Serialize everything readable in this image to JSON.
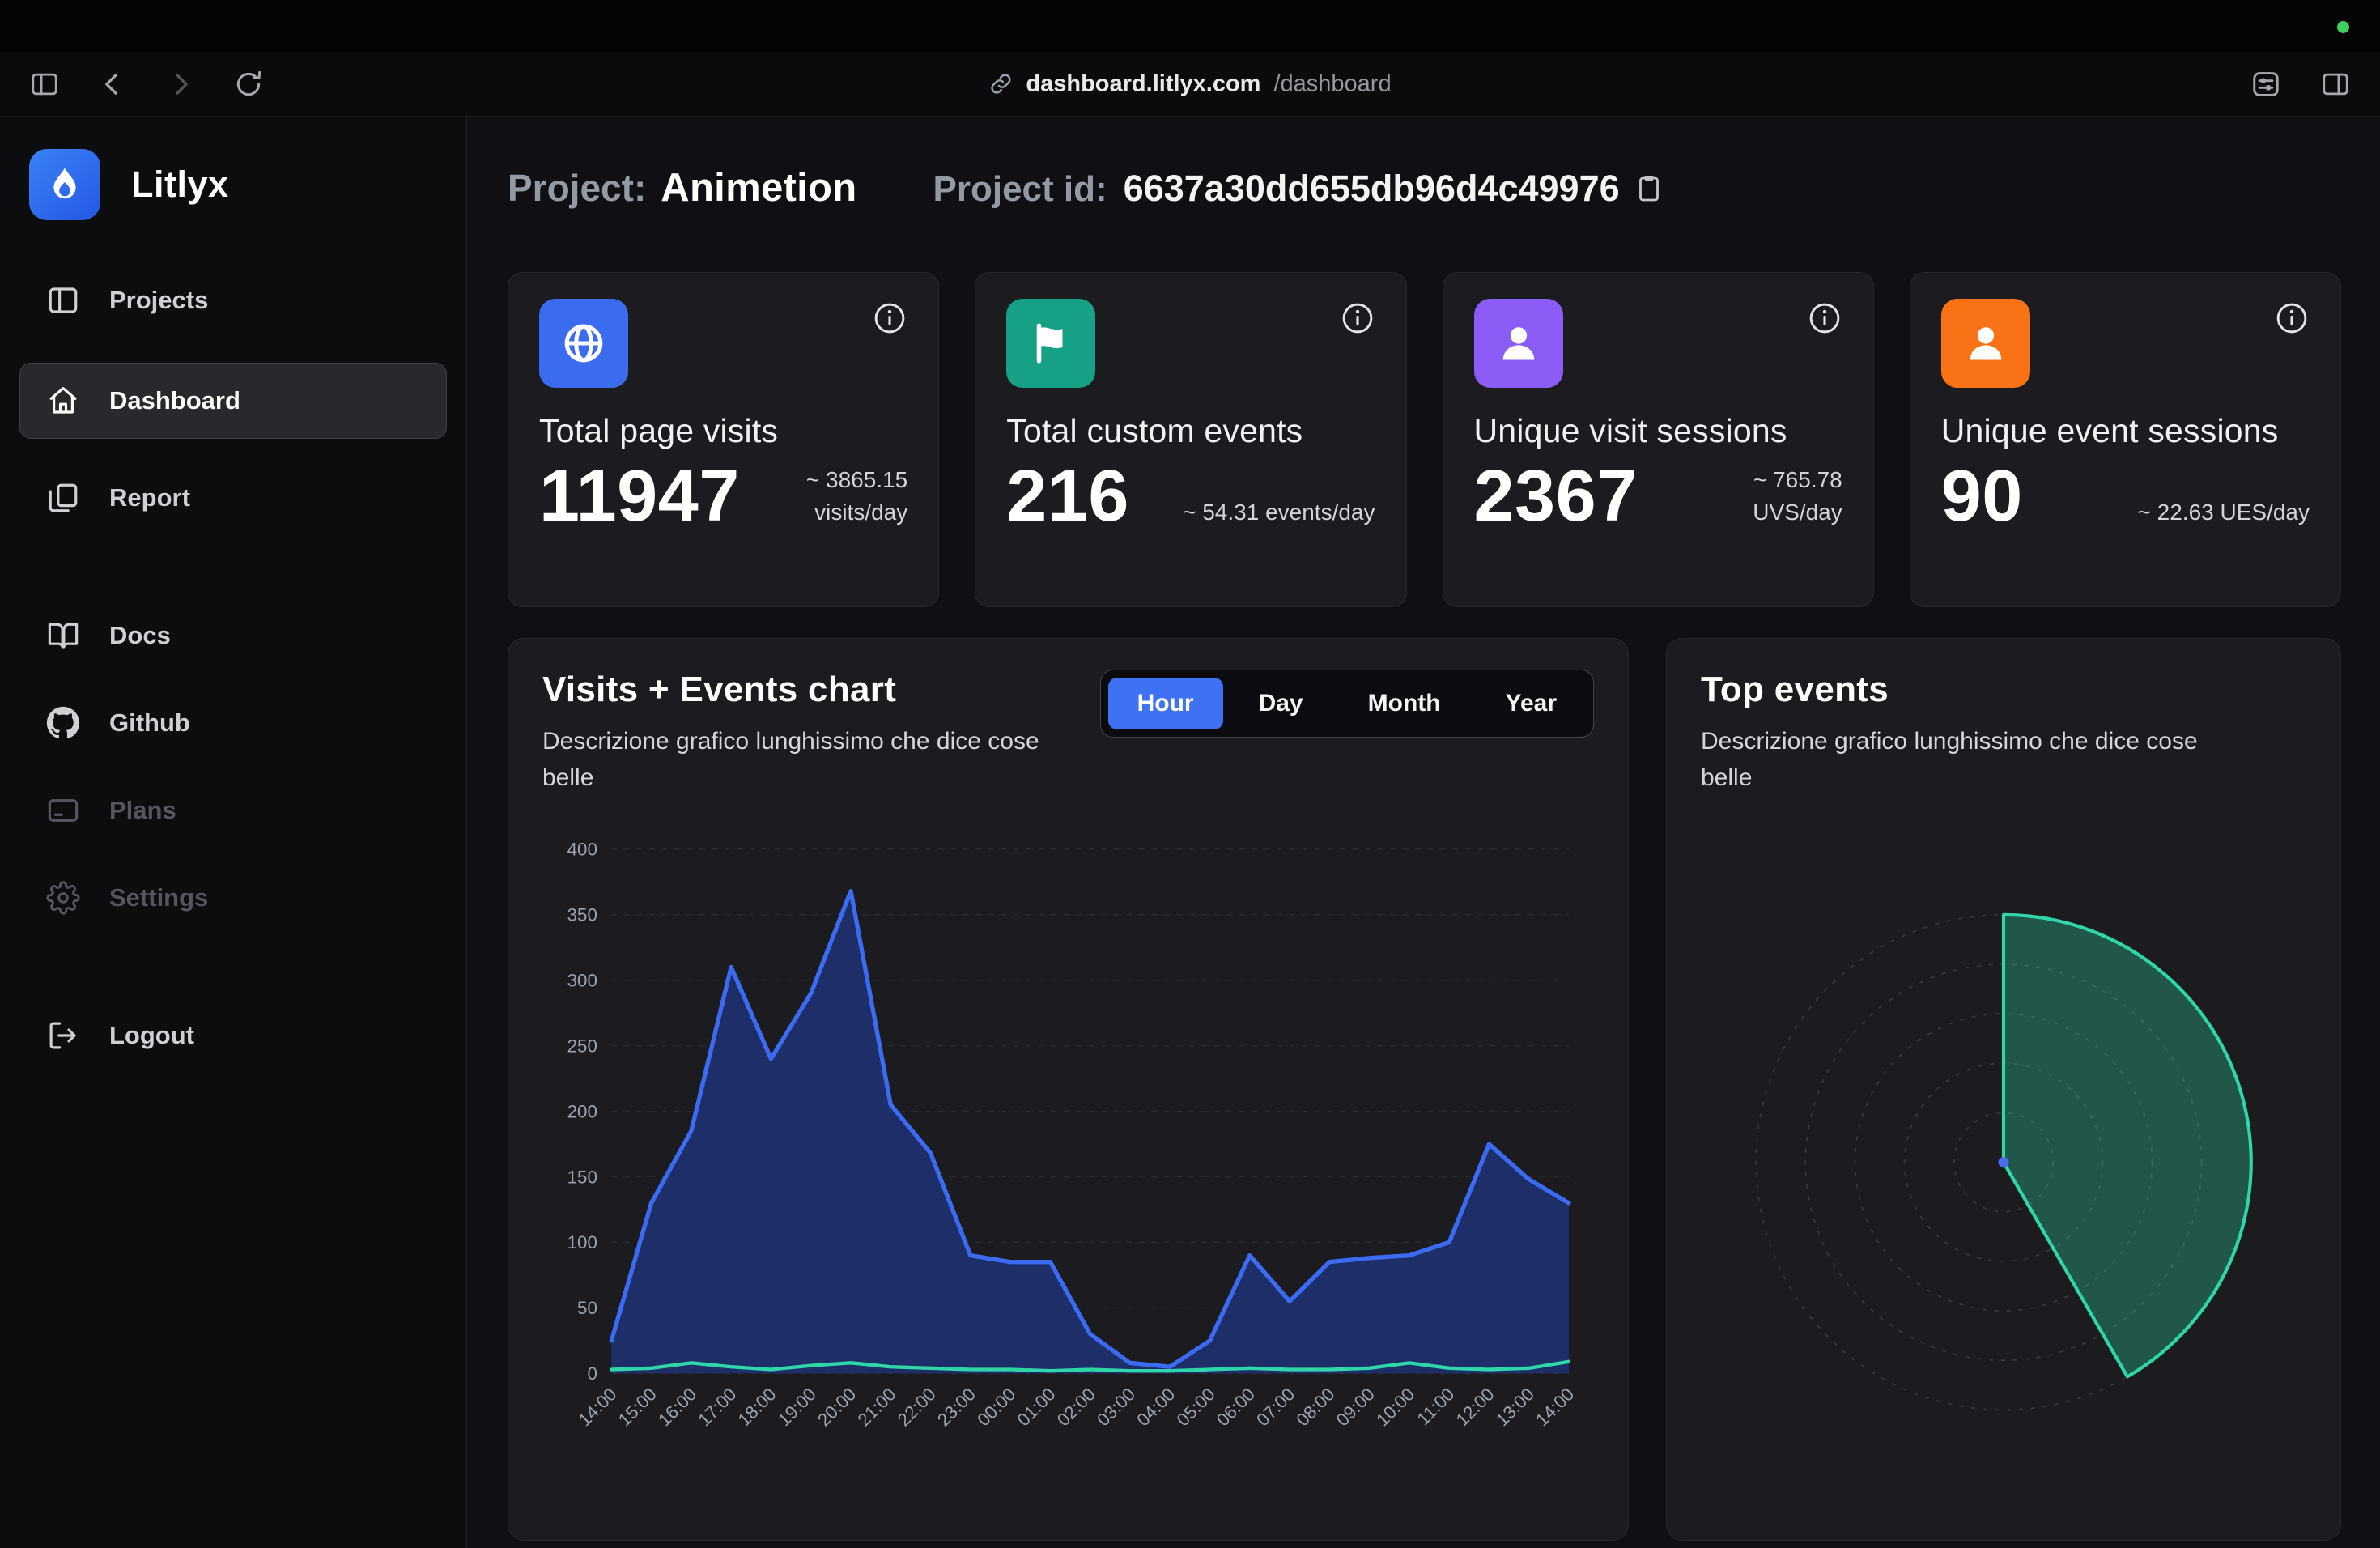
{
  "browser": {
    "url_host": "dashboard.litlyx.com",
    "url_path": "/dashboard"
  },
  "sidebar": {
    "brand": "Litlyx",
    "items": [
      {
        "label": "Projects",
        "state": "default"
      },
      {
        "label": "Dashboard",
        "state": "active"
      },
      {
        "label": "Report",
        "state": "default"
      },
      {
        "label": "Docs",
        "state": "default"
      },
      {
        "label": "Github",
        "state": "default"
      },
      {
        "label": "Plans",
        "state": "disabled"
      },
      {
        "label": "Settings",
        "state": "disabled"
      },
      {
        "label": "Logout",
        "state": "default"
      }
    ]
  },
  "header": {
    "project_label": "Project:",
    "project_name": "Animetion",
    "project_id_label": "Project id:",
    "project_id": "6637a30dd655db96d4c49976"
  },
  "stats": [
    {
      "title": "Total page visits",
      "value": "11947",
      "sub": "~ 3865.15 visits/day",
      "color": "#3b6cf0",
      "icon": "globe-icon"
    },
    {
      "title": "Total custom events",
      "value": "216",
      "sub": "~ 54.31 events/day",
      "color": "#16a085",
      "icon": "flag-icon"
    },
    {
      "title": "Unique visit sessions",
      "value": "2367",
      "sub": "~ 765.78 UVS/day",
      "color": "#8b5cf6",
      "icon": "user-icon"
    },
    {
      "title": "Unique event sessions",
      "value": "90",
      "sub": "~ 22.63 UES/day",
      "color": "#f97316",
      "icon": "user-icon"
    }
  ],
  "visits_chart": {
    "title": "Visits + Events chart",
    "description": "Descrizione grafico lunghissimo che dice cose belle",
    "tabs": [
      "Hour",
      "Day",
      "Month",
      "Year"
    ],
    "active_tab": "Hour"
  },
  "top_events": {
    "title": "Top events",
    "description": "Descrizione grafico lunghissimo che dice cose belle"
  },
  "chart_data": [
    {
      "type": "area",
      "title": "Visits + Events chart",
      "x": [
        "14:00",
        "15:00",
        "16:00",
        "17:00",
        "18:00",
        "19:00",
        "20:00",
        "21:00",
        "22:00",
        "23:00",
        "00:00",
        "01:00",
        "02:00",
        "03:00",
        "04:00",
        "05:00",
        "06:00",
        "07:00",
        "08:00",
        "09:00",
        "10:00",
        "11:00",
        "12:00",
        "13:00",
        "14:00"
      ],
      "ylim": [
        0,
        400
      ],
      "ytick_step": 50,
      "grid": "dashed",
      "legend": "none",
      "series": [
        {
          "name": "Visits",
          "color": "#3b6bf0",
          "fill": "#1d2f6e",
          "fill_opacity": 0.95,
          "width": 5.5,
          "values": [
            25,
            130,
            185,
            310,
            240,
            290,
            368,
            205,
            168,
            90,
            85,
            85,
            30,
            8,
            5,
            25,
            90,
            55,
            85,
            88,
            90,
            100,
            175,
            148,
            130
          ]
        },
        {
          "name": "Events",
          "color": "#2fd6a8",
          "fill": "none",
          "width": 4.5,
          "values": [
            3,
            4,
            8,
            5,
            3,
            6,
            8,
            5,
            4,
            3,
            3,
            2,
            3,
            2,
            2,
            3,
            4,
            3,
            3,
            4,
            8,
            4,
            3,
            4,
            9
          ]
        }
      ]
    },
    {
      "type": "polar-sector",
      "title": "Top events",
      "start_angle_deg": 0,
      "sweep_deg": 150,
      "rings": 5,
      "color": "#2fd6a8",
      "fill_opacity": 0.32,
      "center_dot_color": "#4a6cf0"
    }
  ]
}
